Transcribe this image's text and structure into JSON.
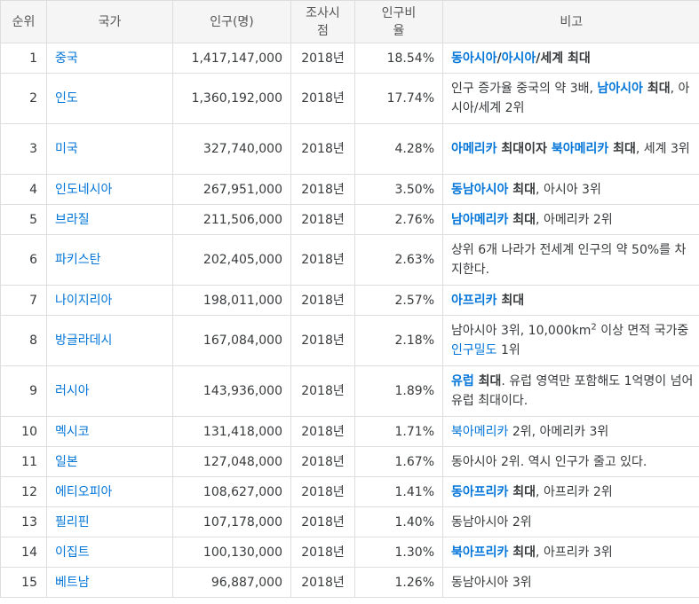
{
  "headers": {
    "rank": "순위",
    "country": "국가",
    "population": "인구(명)",
    "survey_1": "조사시",
    "survey_2": "점",
    "ratio_1": "인구비",
    "ratio_2": "율",
    "note": "비고"
  },
  "rows": [
    {
      "rank": "1",
      "country": "중국",
      "population": "1,417,147,000",
      "year": "2018년",
      "ratio": "18.54%",
      "note": [
        {
          "t": "동아시아",
          "s": "lb"
        },
        {
          "t": "/",
          "s": "b"
        },
        {
          "t": "아시아",
          "s": "lb"
        },
        {
          "t": "/세계 최대",
          "s": "b"
        }
      ]
    },
    {
      "rank": "2",
      "country": "인도",
      "population": "1,360,192,000",
      "year": "2018년",
      "ratio": "17.74%",
      "note": [
        {
          "t": "인구 증가율 중국의 약 3배, ",
          "s": ""
        },
        {
          "t": "남아시아",
          "s": "lb"
        },
        {
          "t": " 최대",
          "s": "b"
        },
        {
          "t": ", 아시아/세계 2위",
          "s": ""
        }
      ]
    },
    {
      "rank": "3",
      "country": "미국",
      "population": "327,740,000",
      "year": "2018년",
      "ratio": "4.28%",
      "note": [
        {
          "t": "아메리카",
          "s": "lb"
        },
        {
          "t": " 최대이자 ",
          "s": "b"
        },
        {
          "t": "북아메리카",
          "s": "lb"
        },
        {
          "t": " 최대",
          "s": "b"
        },
        {
          "t": ", 세계 3위",
          "s": ""
        }
      ]
    },
    {
      "rank": "4",
      "country": "인도네시아",
      "population": "267,951,000",
      "year": "2018년",
      "ratio": "3.50%",
      "note": [
        {
          "t": "동남아시아",
          "s": "lb"
        },
        {
          "t": " 최대",
          "s": "b"
        },
        {
          "t": ", 아시아 3위",
          "s": ""
        }
      ]
    },
    {
      "rank": "5",
      "country": "브라질",
      "population": "211,506,000",
      "year": "2018년",
      "ratio": "2.76%",
      "note": [
        {
          "t": "남아메리카",
          "s": "lb"
        },
        {
          "t": " 최대",
          "s": "b"
        },
        {
          "t": ", 아메리카 2위",
          "s": ""
        }
      ]
    },
    {
      "rank": "6",
      "country": "파키스탄",
      "population": "202,405,000",
      "year": "2018년",
      "ratio": "2.63%",
      "note": [
        {
          "t": "상위 6개 나라가 전세계 인구의 약 50%를 차지한다.",
          "s": ""
        }
      ]
    },
    {
      "rank": "7",
      "country": "나이지리아",
      "population": "198,011,000",
      "year": "2018년",
      "ratio": "2.57%",
      "note": [
        {
          "t": "아프리카",
          "s": "lb"
        },
        {
          "t": " 최대",
          "s": "b"
        }
      ]
    },
    {
      "rank": "8",
      "country": "방글라데시",
      "population": "167,084,000",
      "year": "2018년",
      "ratio": "2.18%",
      "note": [
        {
          "t": "남아시아 3위, 10,000km",
          "s": ""
        },
        {
          "t": "2",
          "s": "sup"
        },
        {
          "t": " 이상 면적 국가중 ",
          "s": ""
        },
        {
          "t": "인구밀도",
          "s": "l"
        },
        {
          "t": " 1위",
          "s": ""
        }
      ]
    },
    {
      "rank": "9",
      "country": "러시아",
      "population": "143,936,000",
      "year": "2018년",
      "ratio": "1.89%",
      "note": [
        {
          "t": "유럽",
          "s": "lb"
        },
        {
          "t": " 최대",
          "s": "b"
        },
        {
          "t": ". 유럽 영역만 포함해도 1억명이 넘어 유럽 최대이다.",
          "s": ""
        }
      ]
    },
    {
      "rank": "10",
      "country": "멕시코",
      "population": "131,418,000",
      "year": "2018년",
      "ratio": "1.71%",
      "note": [
        {
          "t": "북아메리카",
          "s": "l"
        },
        {
          "t": " 2위, 아메리카 3위",
          "s": ""
        }
      ]
    },
    {
      "rank": "11",
      "country": "일본",
      "population": "127,048,000",
      "year": "2018년",
      "ratio": "1.67%",
      "note": [
        {
          "t": "동아시아 2위. 역시 인구가 줄고 있다.",
          "s": ""
        }
      ]
    },
    {
      "rank": "12",
      "country": "에티오피아",
      "population": "108,627,000",
      "year": "2018년",
      "ratio": "1.41%",
      "note": [
        {
          "t": "동아프리카",
          "s": "lb"
        },
        {
          "t": " 최대",
          "s": "b"
        },
        {
          "t": ", 아프리카 2위",
          "s": ""
        }
      ]
    },
    {
      "rank": "13",
      "country": "필리핀",
      "population": "107,178,000",
      "year": "2018년",
      "ratio": "1.40%",
      "note": [
        {
          "t": "동남아시아 2위",
          "s": ""
        }
      ]
    },
    {
      "rank": "14",
      "country": "이집트",
      "population": "100,130,000",
      "year": "2018년",
      "ratio": "1.30%",
      "note": [
        {
          "t": "북아프리카",
          "s": "lb"
        },
        {
          "t": " 최대",
          "s": "b"
        },
        {
          "t": ", 아프리카 3위",
          "s": ""
        }
      ]
    },
    {
      "rank": "15",
      "country": "베트남",
      "population": "96,887,000",
      "year": "2018년",
      "ratio": "1.26%",
      "note": [
        {
          "t": "동남아시아 3위",
          "s": ""
        }
      ]
    }
  ],
  "colors": {
    "link": "#0275d8",
    "text": "#373a3c",
    "border": "#dddddd",
    "header_bg": "#f5f5f5"
  }
}
